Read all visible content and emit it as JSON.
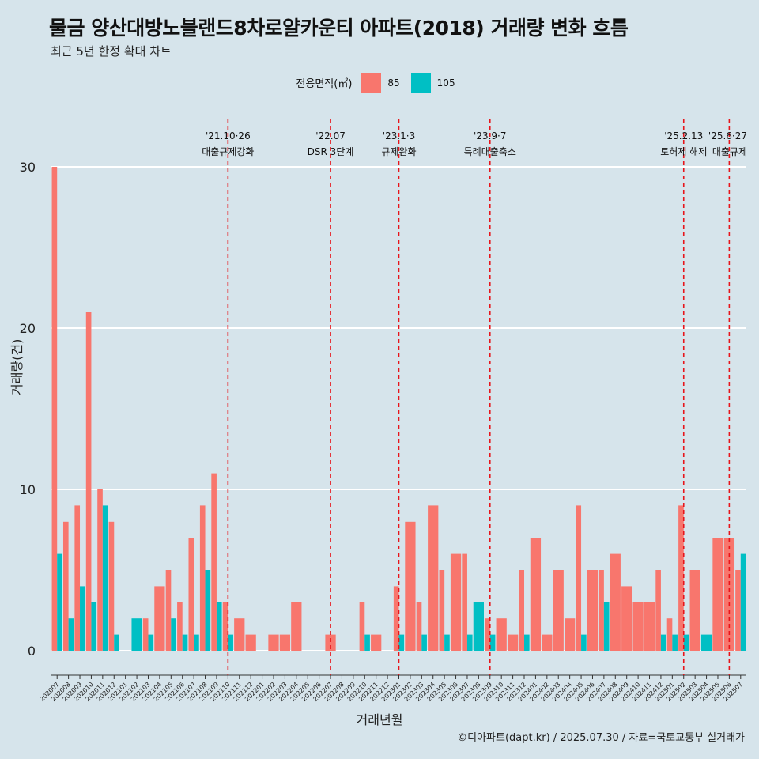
{
  "title": "물금 양산대방노블랜드8차로얄카운티 아파트(2018) 거래량 변화 흐름",
  "subtitle": "최근 5년 한정 확대 차트",
  "caption": "©디아파트(dapt.kr) / 2025.07.30 / 자료=국토교통부 실거래가",
  "colors": {
    "background": "#d6e4eb",
    "s85": "#f8766d",
    "s105": "#00bfc4",
    "event_line": "#e8141a",
    "grid": "#ffffff"
  },
  "legend": {
    "title": "전용면적(㎡)",
    "items": [
      "85",
      "105"
    ]
  },
  "chart_data": {
    "type": "bar",
    "xlabel": "거래년월",
    "ylabel": "거래량(건)",
    "ylim": [
      0,
      30
    ],
    "yticks": [
      0,
      10,
      20,
      30
    ],
    "grid": true,
    "legend_position": "top-center",
    "categories": [
      "202007",
      "202008",
      "202009",
      "202010",
      "202011",
      "202012",
      "202101",
      "202102",
      "202103",
      "202104",
      "202105",
      "202106",
      "202107",
      "202108",
      "202109",
      "202110",
      "202111",
      "202112",
      "202201",
      "202202",
      "202203",
      "202204",
      "202205",
      "202206",
      "202207",
      "202208",
      "202209",
      "202210",
      "202211",
      "202212",
      "202301",
      "202302",
      "202303",
      "202304",
      "202305",
      "202306",
      "202307",
      "202308",
      "202309",
      "202310",
      "202311",
      "202312",
      "202401",
      "202402",
      "202403",
      "202404",
      "202405",
      "202406",
      "202407",
      "202408",
      "202409",
      "202410",
      "202411",
      "202412",
      "202501",
      "202502",
      "202503",
      "202504",
      "202505",
      "202506",
      "202507"
    ],
    "series": [
      {
        "name": "85",
        "values": [
          30,
          8,
          9,
          21,
          10,
          8,
          0,
          0,
          2,
          4,
          5,
          3,
          7,
          9,
          11,
          3,
          2,
          1,
          0,
          1,
          1,
          3,
          0,
          0,
          1,
          0,
          0,
          3,
          1,
          0,
          4,
          8,
          3,
          9,
          5,
          6,
          6,
          0,
          2,
          2,
          1,
          5,
          7,
          1,
          5,
          2,
          9,
          5,
          5,
          6,
          4,
          3,
          3,
          5,
          2,
          9,
          5,
          0,
          7,
          7,
          5
        ]
      },
      {
        "name": "105",
        "values": [
          6,
          2,
          4,
          3,
          9,
          1,
          0,
          2,
          1,
          0,
          2,
          1,
          1,
          5,
          3,
          1,
          0,
          0,
          0,
          0,
          0,
          0,
          0,
          0,
          0,
          0,
          0,
          1,
          0,
          0,
          1,
          0,
          1,
          0,
          1,
          0,
          1,
          3,
          1,
          0,
          0,
          1,
          0,
          0,
          0,
          0,
          1,
          0,
          3,
          0,
          0,
          0,
          0,
          1,
          1,
          1,
          0,
          1,
          0,
          0,
          6
        ]
      }
    ],
    "annotations": [
      {
        "category": "202110",
        "date": "'21.10·26",
        "label": "대출규제강화"
      },
      {
        "category": "202207",
        "date": "'22.07",
        "label": "DSR 3단계"
      },
      {
        "category": "202301",
        "date": "'23.1·3",
        "label": "규제완화"
      },
      {
        "category": "202309",
        "date": "'23.9·7",
        "label": "특례대출축소"
      },
      {
        "category": "202502",
        "date": "'25.2.13",
        "label": "토허제 해제"
      },
      {
        "category": "202506",
        "date": "'25.6·27",
        "label": "대출규제"
      }
    ]
  }
}
